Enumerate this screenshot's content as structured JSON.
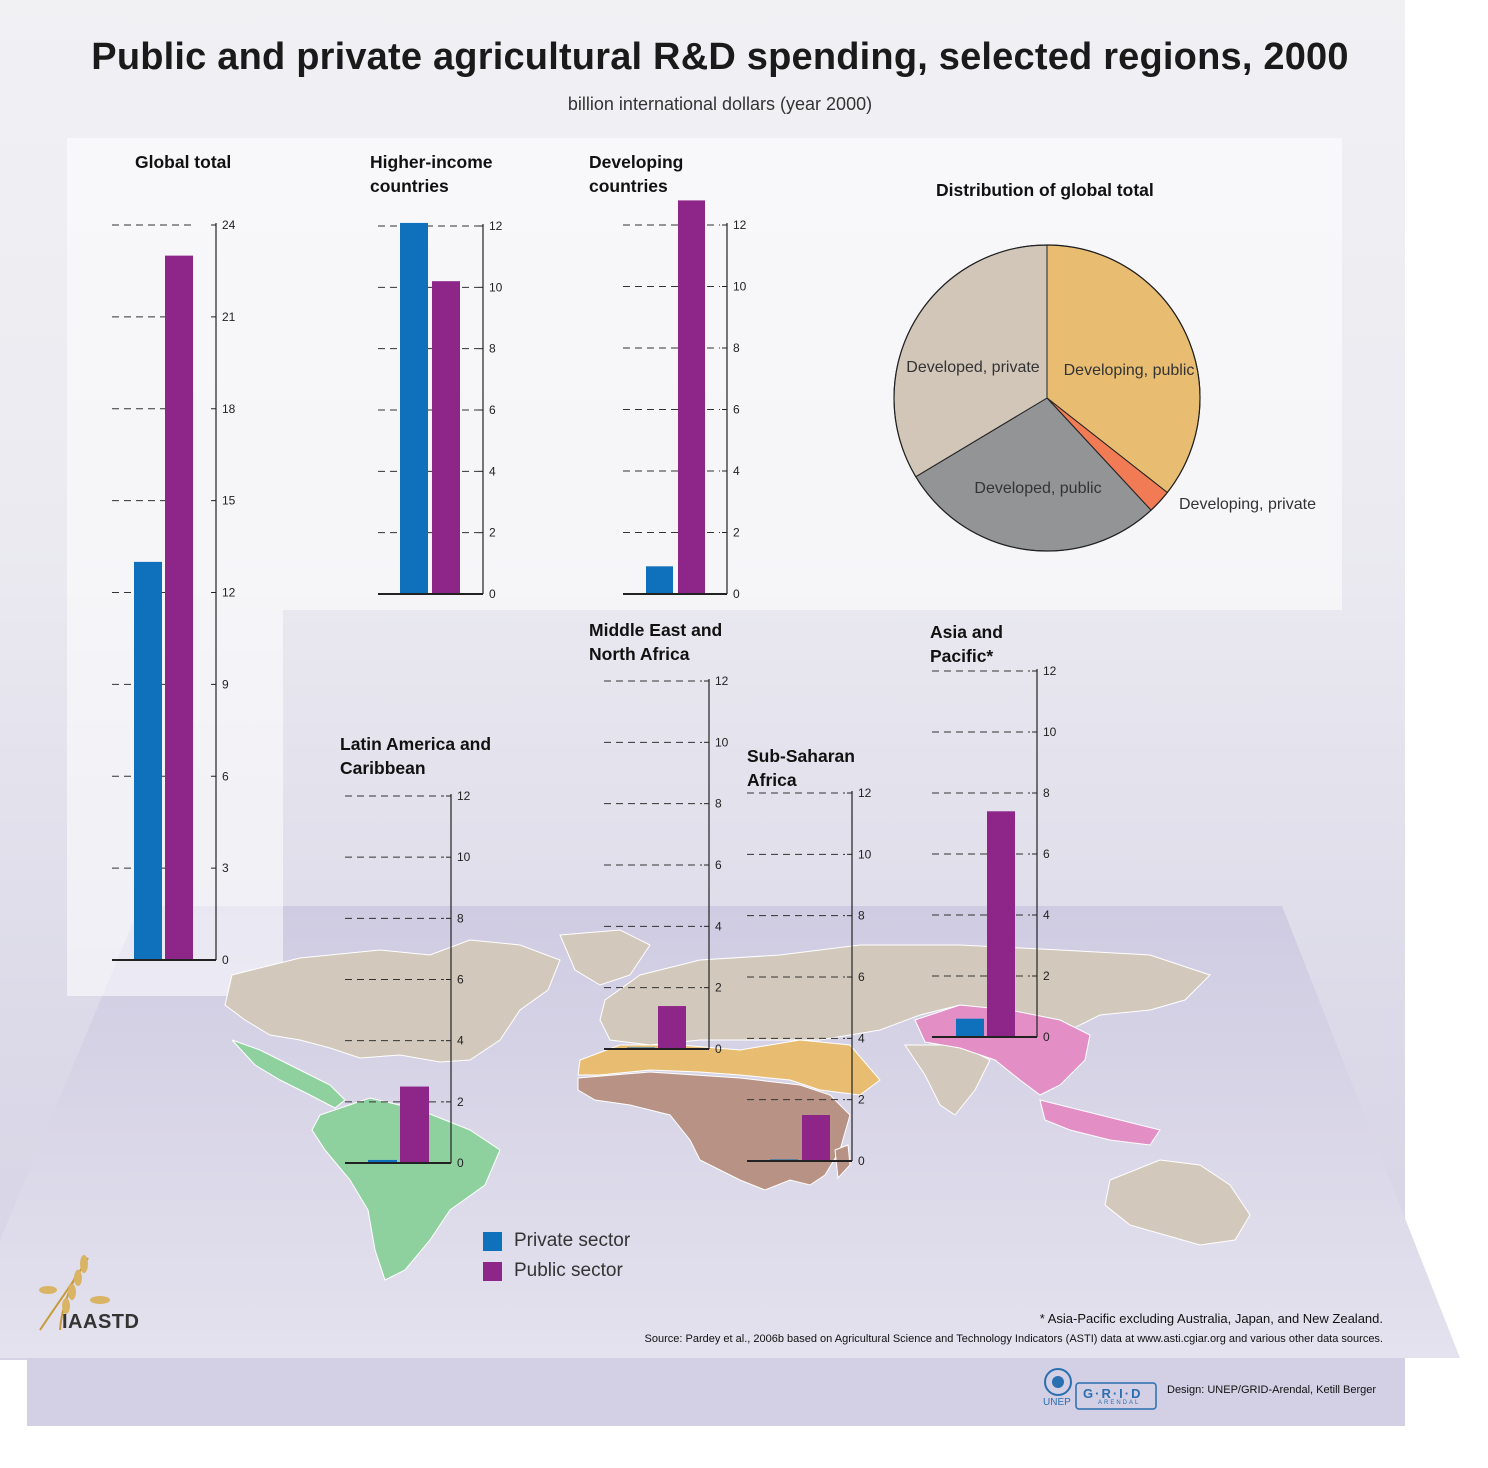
{
  "title": "Public and private agricultural R&D spending, selected regions, 2000",
  "subtitle": "billion international dollars (year 2000)",
  "colors": {
    "private": "#0f70bc",
    "public": "#8e2589",
    "pie_developed_private": "#d2c6b9",
    "pie_developing_public": "#e8bd72",
    "pie_developed_public": "#929496",
    "pie_developing_private": "#f07b55",
    "map_land": "#d3c8bc",
    "map_latin_america": "#8fd19e",
    "map_mena": "#e8bd72",
    "map_ssa": "#b89385",
    "map_asia_pacific": "#e38fc6"
  },
  "legend": {
    "private_label": "Private sector",
    "public_label": "Public sector"
  },
  "chart_data": [
    {
      "type": "bar",
      "title": "Global total",
      "series": [
        {
          "name": "Private sector",
          "values": [
            13
          ]
        },
        {
          "name": "Public sector",
          "values": [
            23
          ]
        }
      ],
      "yticks": [
        0,
        3,
        6,
        9,
        12,
        15,
        18,
        21,
        24
      ],
      "ylim": [
        0,
        24
      ]
    },
    {
      "type": "bar",
      "title": "Higher-income countries",
      "title_lines": [
        "Higher-income",
        "countries"
      ],
      "series": [
        {
          "name": "Private sector",
          "values": [
            12.1
          ]
        },
        {
          "name": "Public sector",
          "values": [
            10.2
          ]
        }
      ],
      "yticks": [
        0,
        2,
        4,
        6,
        8,
        10,
        12
      ],
      "ylim": [
        0,
        12
      ]
    },
    {
      "type": "bar",
      "title": "Developing countries",
      "title_lines": [
        "Developing",
        "countries"
      ],
      "series": [
        {
          "name": "Private sector",
          "values": [
            0.9
          ]
        },
        {
          "name": "Public sector",
          "values": [
            12.8
          ]
        }
      ],
      "yticks": [
        0,
        2,
        4,
        6,
        8,
        10,
        12
      ],
      "ylim": [
        0,
        12
      ]
    },
    {
      "type": "bar",
      "title": "Latin America and Caribbean",
      "title_lines": [
        "Latin America and",
        "Caribbean"
      ],
      "series": [
        {
          "name": "Private sector",
          "values": [
            0.1
          ]
        },
        {
          "name": "Public sector",
          "values": [
            2.5
          ]
        }
      ],
      "yticks": [
        0,
        2,
        4,
        6,
        8,
        10,
        12
      ],
      "ylim": [
        0,
        12
      ]
    },
    {
      "type": "bar",
      "title": "Middle East and North Africa",
      "title_lines": [
        "Middle East and",
        "North Africa"
      ],
      "series": [
        {
          "name": "Private sector",
          "values": [
            0.05
          ]
        },
        {
          "name": "Public sector",
          "values": [
            1.4
          ]
        }
      ],
      "yticks": [
        0,
        2,
        4,
        6,
        8,
        10,
        12
      ],
      "ylim": [
        0,
        12
      ]
    },
    {
      "type": "bar",
      "title": "Sub-Saharan Africa",
      "title_lines": [
        "Sub-Saharan",
        "Africa"
      ],
      "series": [
        {
          "name": "Private sector",
          "values": [
            0.05
          ]
        },
        {
          "name": "Public sector",
          "values": [
            1.5
          ]
        }
      ],
      "yticks": [
        0,
        2,
        4,
        6,
        8,
        10,
        12
      ],
      "ylim": [
        0,
        12
      ]
    },
    {
      "type": "bar",
      "title": "Asia and Pacific*",
      "title_lines": [
        "Asia and",
        "Pacific*"
      ],
      "series": [
        {
          "name": "Private sector",
          "values": [
            0.6
          ]
        },
        {
          "name": "Public sector",
          "values": [
            7.4
          ]
        }
      ],
      "yticks": [
        0,
        2,
        4,
        6,
        8,
        10,
        12
      ],
      "ylim": [
        0,
        12
      ]
    },
    {
      "type": "pie",
      "title": "Distribution of global total",
      "slices": [
        {
          "label": "Developing, public",
          "value": 35.6
        },
        {
          "label": "Developing, private",
          "value": 2.5
        },
        {
          "label": "Developed, public",
          "value": 28.3
        },
        {
          "label": "Developed, private",
          "value": 33.6
        }
      ]
    }
  ],
  "footnote": "*  Asia-Pacific excluding Australia, Japan, and New Zealand.",
  "source": "Source: Pardey et al., 2006b based on Agricultural Science and Technology Indicators (ASTI) data at www.asti.cgiar.org and various other data sources.",
  "design_credit": "Design: UNEP/GRID-Arendal, Ketill Berger",
  "logos": {
    "iaastd": "IAASTD",
    "unep": "UNEP",
    "grid": "G·R·I·D",
    "arendal": "ARENDAL"
  }
}
